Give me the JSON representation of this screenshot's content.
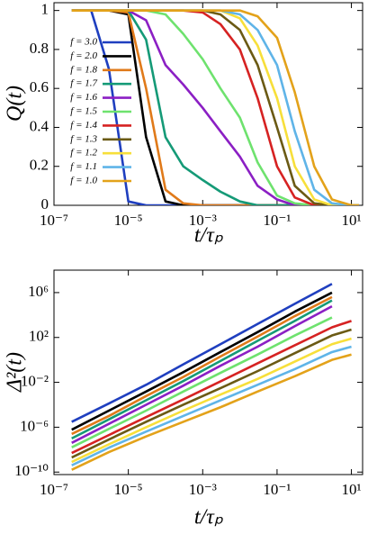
{
  "chart_data": [
    {
      "type": "line",
      "xlabel": "t/τₚ",
      "ylabel": "Q(t)",
      "xscale": "log",
      "legend": "upper left",
      "xlim": [
        1e-07,
        20
      ],
      "ylim": [
        0,
        1.04
      ],
      "xticks": [
        {
          "value": 1e-07,
          "label": "10⁻⁷"
        },
        {
          "value": 1e-05,
          "label": "10⁻⁵"
        },
        {
          "value": 0.001,
          "label": "10⁻³"
        },
        {
          "value": 0.1,
          "label": "10⁻¹"
        },
        {
          "value": 10,
          "label": "10¹"
        }
      ],
      "yticks": [
        0,
        0.2,
        0.4,
        0.6,
        0.8,
        1
      ],
      "x": [
        3e-07,
        1e-06,
        3e-06,
        1e-05,
        3e-05,
        0.0001,
        0.0003,
        0.001,
        0.003,
        0.01,
        0.03,
        0.1,
        0.3,
        1,
        3,
        10,
        16
      ],
      "series": [
        {
          "name": "f = 3.0",
          "color": "#1f3fbf",
          "values": [
            1,
            1,
            0.7,
            0.02,
            0,
            0,
            0,
            0,
            0,
            0,
            0,
            0,
            0,
            0,
            0,
            0,
            0
          ]
        },
        {
          "name": "f = 2.0",
          "color": "#000000",
          "values": [
            1,
            1,
            1,
            0.98,
            0.35,
            0.02,
            0,
            0,
            0,
            0,
            0,
            0,
            0,
            0,
            0,
            0,
            0
          ]
        },
        {
          "name": "f = 1.8",
          "color": "#e07a1a",
          "values": [
            1,
            1,
            1,
            0.99,
            0.6,
            0.08,
            0.01,
            0,
            0,
            0,
            0,
            0,
            0,
            0,
            0,
            0,
            0
          ]
        },
        {
          "name": "f = 1.7",
          "color": "#159a77",
          "values": [
            1,
            1,
            1,
            1,
            0.85,
            0.35,
            0.2,
            0.13,
            0.07,
            0.02,
            0,
            0,
            0,
            0,
            0,
            0,
            0
          ]
        },
        {
          "name": "f = 1.6",
          "color": "#8b1fc4",
          "values": [
            1,
            1,
            1,
            1,
            0.95,
            0.72,
            0.62,
            0.5,
            0.38,
            0.25,
            0.1,
            0.03,
            0,
            0,
            0,
            0,
            0
          ]
        },
        {
          "name": "f = 1.5",
          "color": "#6ee26e",
          "values": [
            1,
            1,
            1,
            1,
            1,
            0.98,
            0.88,
            0.75,
            0.6,
            0.45,
            0.22,
            0.05,
            0.01,
            0,
            0,
            0,
            0
          ]
        },
        {
          "name": "f = 1.4",
          "color": "#d62222",
          "values": [
            1,
            1,
            1,
            1,
            1,
            1,
            1,
            0.99,
            0.93,
            0.8,
            0.55,
            0.2,
            0.04,
            0,
            0,
            0,
            0
          ]
        },
        {
          "name": "f = 1.3",
          "color": "#6b5a14",
          "values": [
            1,
            1,
            1,
            1,
            1,
            1,
            1,
            1,
            0.98,
            0.9,
            0.72,
            0.4,
            0.1,
            0.01,
            0,
            0,
            0
          ]
        },
        {
          "name": "f = 1.2",
          "color": "#f7df3a",
          "values": [
            1,
            1,
            1,
            1,
            1,
            1,
            1,
            1,
            1,
            0.96,
            0.82,
            0.55,
            0.2,
            0.03,
            0,
            0,
            0
          ]
        },
        {
          "name": "f = 1.1",
          "color": "#5fb4e8",
          "values": [
            1,
            1,
            1,
            1,
            1,
            1,
            1,
            1,
            1,
            0.98,
            0.9,
            0.72,
            0.38,
            0.08,
            0.01,
            0,
            0
          ]
        },
        {
          "name": "f = 1.0",
          "color": "#e3a21a",
          "values": [
            1,
            1,
            1,
            1,
            1,
            1,
            1,
            1,
            1,
            1,
            0.97,
            0.86,
            0.58,
            0.2,
            0.03,
            0,
            0
          ]
        }
      ]
    },
    {
      "type": "line",
      "xlabel": "t/τₚ",
      "ylabel": "Δ²(t)",
      "xscale": "log",
      "yscale": "log",
      "xlim": [
        1e-07,
        20
      ],
      "ylim": [
        6e-11,
        100000000.0
      ],
      "xticks": [
        {
          "value": 1e-07,
          "label": "10⁻⁷"
        },
        {
          "value": 1e-05,
          "label": "10⁻⁵"
        },
        {
          "value": 0.001,
          "label": "10⁻³"
        },
        {
          "value": 0.1,
          "label": "10⁻¹"
        },
        {
          "value": 10,
          "label": "10¹"
        }
      ],
      "yticks": [
        {
          "value": 1e-10,
          "label": "10⁻¹⁰"
        },
        {
          "value": 1e-06,
          "label": "10⁻⁶"
        },
        {
          "value": 0.01,
          "label": "10⁻²"
        },
        {
          "value": 100,
          "label": "10²"
        },
        {
          "value": 1000000,
          "label": "10⁶"
        }
      ],
      "x": [
        3e-07,
        3e-06,
        3e-05,
        0.0003,
        0.003,
        0.03,
        0.3,
        3,
        10
      ],
      "series": [
        {
          "color": "#1f3fbf",
          "values": [
            3e-06,
            0.00013,
            0.006,
            0.4,
            25,
            1600,
            100000,
            6000000,
            null
          ]
        },
        {
          "color": "#000000",
          "values": [
            6e-07,
            3e-05,
            0.0015,
            0.08,
            5,
            300,
            20000,
            1000000,
            null
          ]
        },
        {
          "color": "#e07a1a",
          "values": [
            2.5e-07,
            1e-05,
            0.0006,
            0.03,
            2,
            120,
            8000,
            400000,
            null
          ]
        },
        {
          "color": "#159a77",
          "values": [
            1e-07,
            5e-06,
            0.00025,
            0.013,
            0.8,
            50,
            3000,
            200000,
            null
          ]
        },
        {
          "color": "#8b1fc4",
          "values": [
            4e-08,
            2e-06,
            0.0001,
            0.005,
            0.3,
            15,
            1000,
            60000,
            null
          ]
        },
        {
          "color": "#6ee26e",
          "values": [
            1.6e-08,
            7e-07,
            3e-05,
            0.0015,
            0.07,
            3,
            150,
            6000,
            null
          ]
        },
        {
          "color": "#d62222",
          "values": [
            5e-09,
            2e-07,
            8e-06,
            0.0003,
            0.012,
            0.5,
            20,
            800,
            3000
          ]
        },
        {
          "color": "#6b5a14",
          "values": [
            2e-09,
            8e-08,
            3e-06,
            0.0001,
            0.003,
            0.1,
            4,
            150,
            500
          ]
        },
        {
          "color": "#f7df3a",
          "values": [
            8e-10,
            3e-08,
            1e-06,
            3e-05,
            0.0008,
            0.02,
            0.7,
            25,
            80
          ]
        },
        {
          "color": "#5fb4e8",
          "values": [
            4e-10,
            1.5e-08,
            4e-07,
            1e-05,
            0.00025,
            0.006,
            0.15,
            5,
            15
          ]
        },
        {
          "color": "#e3a21a",
          "values": [
            1.6e-10,
            6e-09,
            1.5e-07,
            3e-06,
            6e-05,
            0.0015,
            0.035,
            1,
            3
          ]
        }
      ]
    }
  ]
}
